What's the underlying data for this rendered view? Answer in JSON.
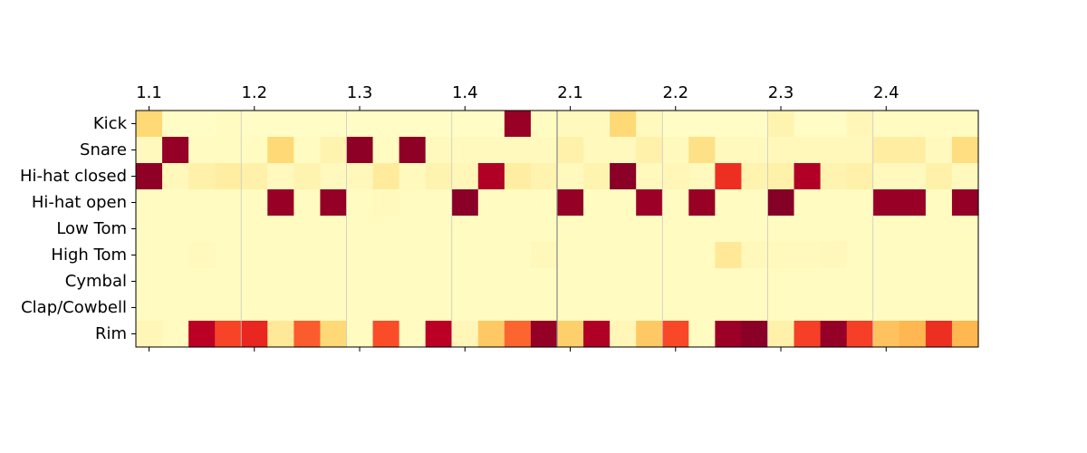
{
  "chart_data": {
    "type": "heatmap",
    "title": "",
    "xlabel": "",
    "ylabel": "",
    "colormap": "YlOrRd",
    "value_range": [
      0,
      1
    ],
    "rows": [
      "Kick",
      "Snare",
      "Hi-hat closed",
      "Hi-hat open",
      "Low Tom",
      "High Tom",
      "Cymbal",
      "Clap/Cowbell",
      "Rim"
    ],
    "columns": 32,
    "x_tick_labels": [
      "1.1",
      "1.2",
      "1.3",
      "1.4",
      "2.1",
      "2.2",
      "2.3",
      "2.4"
    ],
    "x_tick_columns": [
      0,
      4,
      8,
      12,
      16,
      20,
      24,
      28
    ],
    "x_tick_position": "top",
    "beat_lines_every": 4,
    "bar_line_at_column": 16,
    "values": [
      [
        0.25,
        0.02,
        0.02,
        0.03,
        0.02,
        0.02,
        0.02,
        0.02,
        0.02,
        0.02,
        0.02,
        0.02,
        0.02,
        0.02,
        0.95,
        0.03,
        0.04,
        0.04,
        0.25,
        0.04,
        0.02,
        0.02,
        0.02,
        0.02,
        0.08,
        0.02,
        0.02,
        0.06,
        0.03,
        0.03,
        0.03,
        0.03
      ],
      [
        0.04,
        0.96,
        0.03,
        0.03,
        0.03,
        0.25,
        0.03,
        0.08,
        0.97,
        0.03,
        0.97,
        0.04,
        0.04,
        0.04,
        0.04,
        0.04,
        0.1,
        0.04,
        0.04,
        0.1,
        0.04,
        0.2,
        0.04,
        0.04,
        0.05,
        0.05,
        0.05,
        0.05,
        0.12,
        0.12,
        0.04,
        0.22
      ],
      [
        0.97,
        0.05,
        0.1,
        0.12,
        0.1,
        0.04,
        0.08,
        0.04,
        0.05,
        0.14,
        0.04,
        0.08,
        0.06,
        0.9,
        0.12,
        0.08,
        0.04,
        0.08,
        0.98,
        0.04,
        0.06,
        0.04,
        0.7,
        0.08,
        0.1,
        0.9,
        0.08,
        0.1,
        0.04,
        0.04,
        0.1,
        0.04
      ],
      [
        0.03,
        0.03,
        0.03,
        0.03,
        0.03,
        0.95,
        0.03,
        0.96,
        0.03,
        0.04,
        0.03,
        0.03,
        0.98,
        0.03,
        0.03,
        0.03,
        0.96,
        0.03,
        0.03,
        0.94,
        0.03,
        0.95,
        0.03,
        0.03,
        0.99,
        0.03,
        0.03,
        0.03,
        0.95,
        0.95,
        0.03,
        0.96
      ],
      [
        0.03,
        0.03,
        0.03,
        0.03,
        0.03,
        0.03,
        0.03,
        0.03,
        0.03,
        0.03,
        0.03,
        0.03,
        0.03,
        0.03,
        0.03,
        0.03,
        0.03,
        0.03,
        0.03,
        0.03,
        0.03,
        0.03,
        0.03,
        0.03,
        0.03,
        0.03,
        0.03,
        0.03,
        0.03,
        0.03,
        0.03,
        0.03
      ],
      [
        0.03,
        0.03,
        0.04,
        0.03,
        0.03,
        0.03,
        0.03,
        0.03,
        0.03,
        0.03,
        0.03,
        0.03,
        0.03,
        0.03,
        0.03,
        0.05,
        0.03,
        0.03,
        0.03,
        0.03,
        0.03,
        0.03,
        0.15,
        0.05,
        0.04,
        0.04,
        0.05,
        0.03,
        0.03,
        0.03,
        0.03,
        0.03
      ],
      [
        0.03,
        0.03,
        0.03,
        0.03,
        0.03,
        0.03,
        0.03,
        0.03,
        0.03,
        0.03,
        0.03,
        0.03,
        0.03,
        0.03,
        0.03,
        0.03,
        0.03,
        0.03,
        0.03,
        0.03,
        0.03,
        0.03,
        0.03,
        0.03,
        0.03,
        0.03,
        0.03,
        0.03,
        0.03,
        0.03,
        0.03,
        0.03
      ],
      [
        0.03,
        0.03,
        0.03,
        0.03,
        0.03,
        0.03,
        0.03,
        0.03,
        0.03,
        0.03,
        0.03,
        0.03,
        0.03,
        0.03,
        0.03,
        0.03,
        0.03,
        0.03,
        0.03,
        0.03,
        0.03,
        0.03,
        0.03,
        0.03,
        0.03,
        0.03,
        0.03,
        0.03,
        0.03,
        0.03,
        0.03,
        0.03
      ],
      [
        0.06,
        0.03,
        0.88,
        0.65,
        0.72,
        0.15,
        0.6,
        0.25,
        0.03,
        0.63,
        0.03,
        0.88,
        0.06,
        0.3,
        0.58,
        0.96,
        0.28,
        0.9,
        0.06,
        0.3,
        0.64,
        0.03,
        0.94,
        0.98,
        0.1,
        0.66,
        0.96,
        0.66,
        0.32,
        0.36,
        0.7,
        0.36
      ]
    ]
  }
}
